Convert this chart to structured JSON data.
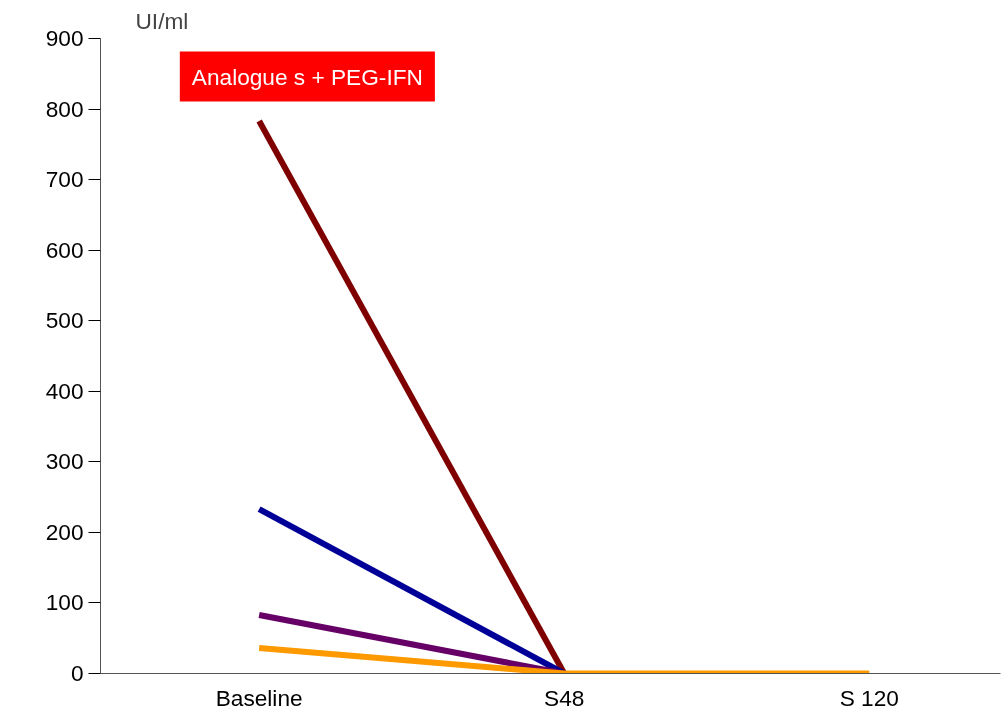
{
  "chart_data": {
    "type": "line",
    "ylabel": "UI/ml",
    "categories": [
      "Baseline",
      "S48",
      "S 120"
    ],
    "series": [
      {
        "color": "#7f0000",
        "values": [
          783,
          0,
          null
        ]
      },
      {
        "color": "#000099",
        "values": [
          233,
          0,
          null
        ]
      },
      {
        "color": "#660066",
        "values": [
          83,
          0,
          null
        ]
      },
      {
        "color": "#ff9900",
        "values": [
          36,
          0,
          0
        ]
      }
    ],
    "ylim": [
      0,
      900
    ],
    "yticks": [
      0,
      100,
      200,
      300,
      400,
      500,
      600,
      700,
      800,
      900
    ],
    "annotations": [
      "Analogue s + PEG-IFN"
    ],
    "grid": false,
    "marker": "none",
    "line_style": "solid"
  }
}
